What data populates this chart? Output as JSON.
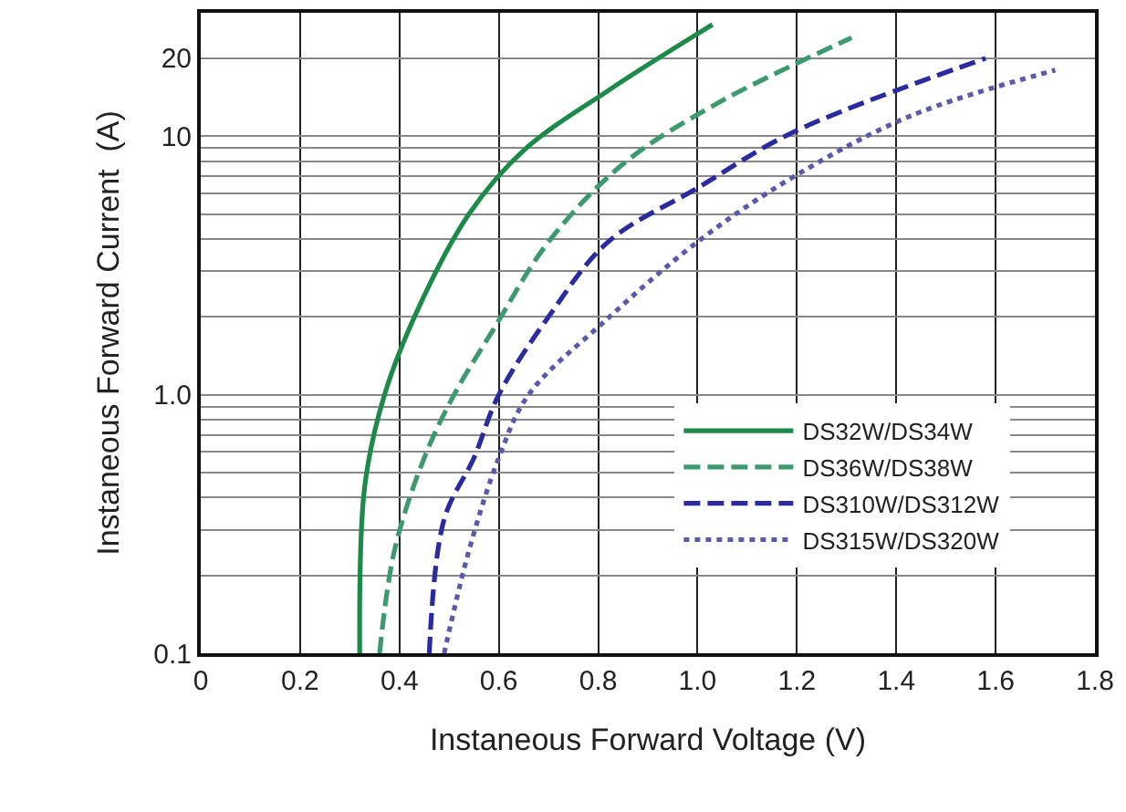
{
  "chart_data": {
    "type": "line",
    "xlabel": "Instaneous Forward Voltage (V)",
    "ylabel": "Instaneous Forward Current  (A)",
    "log": "y",
    "grid": true,
    "legend": "bottom right",
    "marker": "none",
    "xlim": [
      0,
      1.8
    ],
    "xticks": [
      0,
      0.2,
      0.4,
      0.6,
      0.8,
      {
        "value": 1,
        "label": "1.0"
      },
      1.2,
      1.4,
      1.6,
      1.8
    ],
    "ylim": [
      0.1,
      30
    ],
    "yticks": [
      0.1,
      {
        "value": 0.2,
        "label": null
      },
      {
        "value": 0.3,
        "label": null
      },
      {
        "value": 0.4,
        "label": null
      },
      {
        "value": 0.5,
        "label": null
      },
      {
        "value": 0.6,
        "label": null
      },
      {
        "value": 0.7,
        "label": null
      },
      {
        "value": 0.8,
        "label": null
      },
      {
        "value": 0.9,
        "label": null
      },
      {
        "value": 1,
        "label": "1.0"
      },
      {
        "value": 2,
        "label": null
      },
      {
        "value": 3,
        "label": null
      },
      {
        "value": 4,
        "label": null
      },
      {
        "value": 5,
        "label": null
      },
      {
        "value": 6,
        "label": null
      },
      {
        "value": 7,
        "label": null
      },
      {
        "value": 8,
        "label": null
      },
      {
        "value": 9,
        "label": null
      },
      10,
      20
    ],
    "series": [
      {
        "name": "DS32W/DS34W",
        "color": "#1e8a4a",
        "line_style": "solid",
        "x": [
          0.32,
          0.33,
          0.37,
          0.44,
          0.54,
          0.65,
          0.82,
          1.03
        ],
        "values": [
          0.1,
          0.44,
          1.0,
          2.2,
          5,
          8.8,
          15,
          27
        ]
      },
      {
        "name": "DS36W/DS38W",
        "color": "#3d9a70",
        "line_style": "dashed",
        "x": [
          0.36,
          0.39,
          0.45,
          0.51,
          0.59,
          0.7,
          0.85,
          1.04,
          1.31
        ],
        "values": [
          0.1,
          0.25,
          0.57,
          1.0,
          1.8,
          3.9,
          7.8,
          13.4,
          24
        ]
      },
      {
        "name": "DS310W/DS312W",
        "color": "#2b2ba0",
        "line_style": "dashed",
        "x": [
          0.46,
          0.49,
          0.55,
          0.6,
          0.7,
          0.82,
          1.0,
          1.19,
          1.58
        ],
        "values": [
          0.1,
          0.33,
          0.57,
          1.0,
          2.0,
          3.9,
          6.3,
          10.3,
          20
        ]
      },
      {
        "name": "DS315W/DS320W",
        "color": "#5a5aa8",
        "line_style": "dotted",
        "x": [
          0.49,
          0.54,
          0.6,
          0.66,
          0.81,
          1.0,
          1.19,
          1.43,
          1.72
        ],
        "values": [
          0.1,
          0.25,
          0.57,
          1.0,
          1.9,
          3.9,
          6.9,
          12,
          18
        ]
      }
    ]
  }
}
